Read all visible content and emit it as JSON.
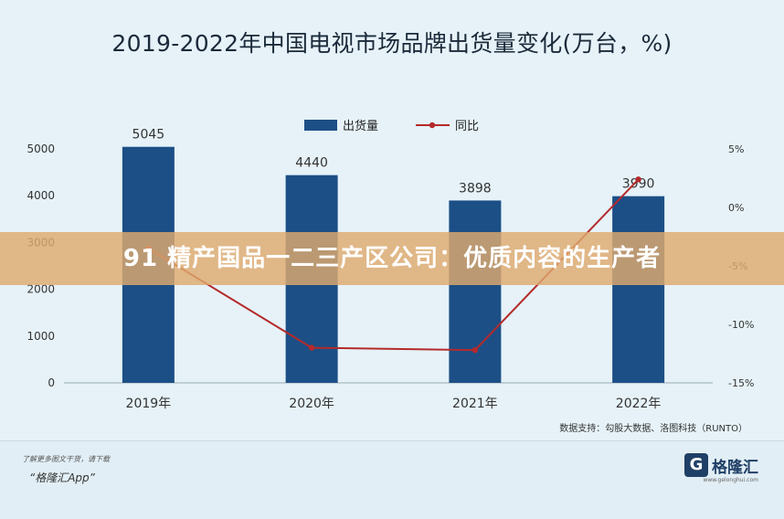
{
  "chart_data": {
    "type": "bar",
    "title": "2019-2022年中国电视市场品牌出货量变化(万台，%)",
    "categories": [
      "2019年",
      "2020年",
      "2021年",
      "2022年"
    ],
    "series": [
      {
        "name": "出货量",
        "type": "bar",
        "axis": "left",
        "color": "#1c4f86",
        "values": [
          5045,
          4440,
          3898,
          3990
        ]
      },
      {
        "name": "同比",
        "type": "line",
        "axis": "right",
        "color": "#b52a2a",
        "values": [
          -3.5,
          -12.0,
          -12.2,
          2.4
        ]
      }
    ],
    "bar_labels": [
      "5045",
      "4440",
      "3898",
      "3990"
    ],
    "y_left": {
      "ylim": [
        0,
        5000
      ],
      "ticks": [
        "0",
        "1000",
        "2000",
        "3000",
        "4000",
        "5000"
      ]
    },
    "y_right": {
      "ylim": [
        -15,
        5
      ],
      "ticks": [
        "5%",
        "0%",
        "-5%",
        "-10%",
        "-15%"
      ]
    },
    "legend_position": "top-center",
    "grid": false
  },
  "source_text": "数据支持：勾股大数据、洛图科技（RUNTO）",
  "footer": {
    "hint": "了解更多图文干货，请下载",
    "app": "“格隆汇App”",
    "brand_name": "格隆汇",
    "brand_logo_letter": "G",
    "brand_url": "www.gelonghui.com"
  },
  "banner_text": "91 精产国品一二三产区公司：优质内容的生产者"
}
